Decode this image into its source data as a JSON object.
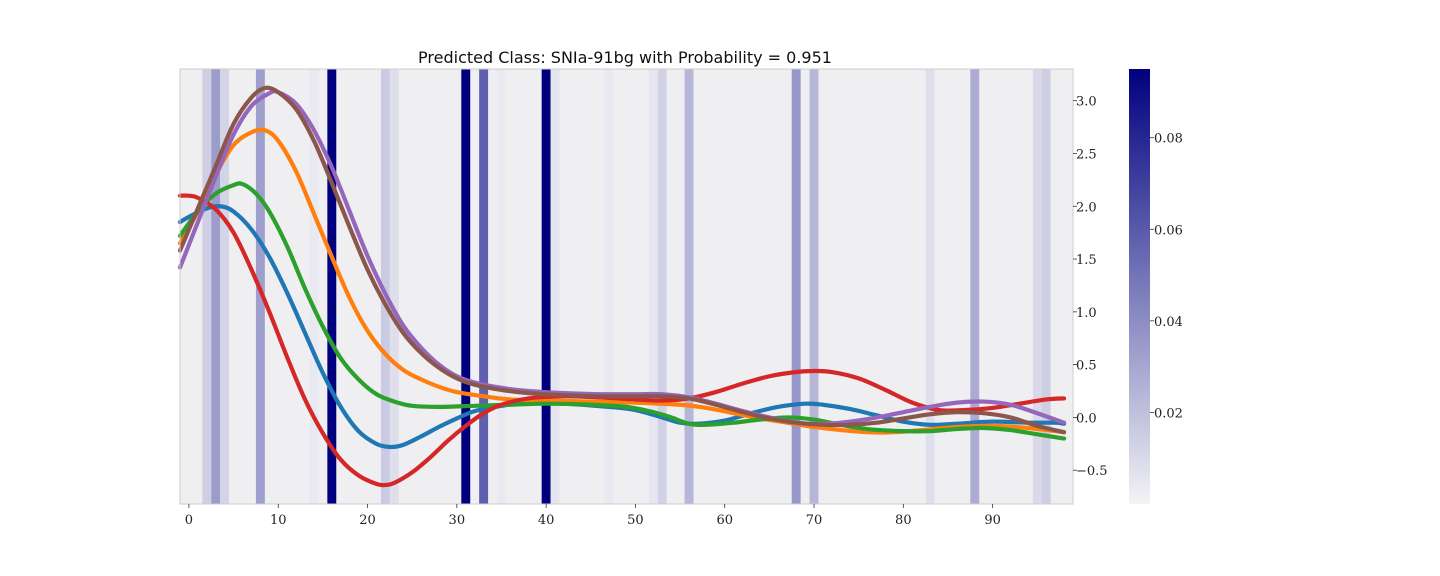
{
  "chart_data": {
    "type": "line",
    "title": "Predicted Class: SNIa-91bg with Probability = 0.951",
    "xlabel": "",
    "ylabel": "",
    "xlim": [
      -1,
      99
    ],
    "ylim": [
      -0.82,
      3.3
    ],
    "x_ticks": [
      0,
      10,
      20,
      30,
      40,
      50,
      60,
      70,
      80,
      90
    ],
    "y_ticks": [
      {
        "value": 3.0,
        "label": "3.0"
      },
      {
        "value": 2.5,
        "label": "2.5"
      },
      {
        "value": 2.0,
        "label": "2.0"
      },
      {
        "value": 1.5,
        "label": "1.5"
      },
      {
        "value": 1.0,
        "label": "1.0"
      },
      {
        "value": 0.5,
        "label": "0.5"
      },
      {
        "value": 0.0,
        "label": "0.0"
      },
      {
        "value": -0.5,
        "label": "−0.5"
      }
    ],
    "y_axis_side": "right",
    "grid": false,
    "legend": "none",
    "background_color": "#efeff2",
    "series": [
      {
        "color": "#1f77b4",
        "points": [
          [
            -1,
            1.85
          ],
          [
            0,
            1.9
          ],
          [
            2,
            1.98
          ],
          [
            3.5,
            2.0
          ],
          [
            5,
            1.95
          ],
          [
            7,
            1.78
          ],
          [
            9,
            1.52
          ],
          [
            11,
            1.18
          ],
          [
            13,
            0.8
          ],
          [
            15,
            0.42
          ],
          [
            17,
            0.1
          ],
          [
            19,
            -0.13
          ],
          [
            21,
            -0.25
          ],
          [
            22.5,
            -0.28
          ],
          [
            24,
            -0.26
          ],
          [
            26,
            -0.18
          ],
          [
            28,
            -0.09
          ],
          [
            30,
            -0.01
          ],
          [
            32,
            0.06
          ],
          [
            35,
            0.11
          ],
          [
            38,
            0.14
          ],
          [
            42,
            0.13
          ],
          [
            47,
            0.1
          ],
          [
            50,
            0.07
          ],
          [
            53,
            0.0
          ],
          [
            55,
            -0.05
          ],
          [
            57,
            -0.06
          ],
          [
            60,
            -0.03
          ],
          [
            63,
            0.04
          ],
          [
            66,
            0.1
          ],
          [
            69,
            0.13
          ],
          [
            71,
            0.12
          ],
          [
            74,
            0.08
          ],
          [
            77,
            0.02
          ],
          [
            80,
            -0.04
          ],
          [
            83,
            -0.07
          ],
          [
            86,
            -0.06
          ],
          [
            90,
            -0.04
          ],
          [
            94,
            -0.05
          ],
          [
            97,
            -0.05
          ],
          [
            98,
            -0.06
          ]
        ]
      },
      {
        "color": "#ff7f0e",
        "points": [
          [
            -1,
            1.65
          ],
          [
            1,
            1.95
          ],
          [
            3,
            2.3
          ],
          [
            5,
            2.58
          ],
          [
            7,
            2.7
          ],
          [
            8.5,
            2.72
          ],
          [
            10,
            2.62
          ],
          [
            12,
            2.33
          ],
          [
            14,
            1.93
          ],
          [
            16,
            1.52
          ],
          [
            18,
            1.13
          ],
          [
            20,
            0.82
          ],
          [
            22,
            0.6
          ],
          [
            24,
            0.45
          ],
          [
            26,
            0.36
          ],
          [
            28,
            0.29
          ],
          [
            30,
            0.24
          ],
          [
            33,
            0.2
          ],
          [
            36,
            0.17
          ],
          [
            40,
            0.16
          ],
          [
            45,
            0.15
          ],
          [
            50,
            0.14
          ],
          [
            55,
            0.12
          ],
          [
            58,
            0.09
          ],
          [
            61,
            0.04
          ],
          [
            64,
            -0.01
          ],
          [
            67,
            -0.05
          ],
          [
            70,
            -0.09
          ],
          [
            73,
            -0.12
          ],
          [
            76,
            -0.14
          ],
          [
            79,
            -0.14
          ],
          [
            82,
            -0.12
          ],
          [
            86,
            -0.09
          ],
          [
            90,
            -0.08
          ],
          [
            94,
            -0.1
          ],
          [
            98,
            -0.14
          ]
        ]
      },
      {
        "color": "#2ca02c",
        "points": [
          [
            -1,
            1.72
          ],
          [
            1,
            1.95
          ],
          [
            3,
            2.12
          ],
          [
            5,
            2.2
          ],
          [
            6,
            2.21
          ],
          [
            7.5,
            2.12
          ],
          [
            9,
            1.95
          ],
          [
            11,
            1.62
          ],
          [
            13,
            1.22
          ],
          [
            15,
            0.86
          ],
          [
            17,
            0.56
          ],
          [
            19,
            0.36
          ],
          [
            21,
            0.22
          ],
          [
            23,
            0.15
          ],
          [
            25,
            0.11
          ],
          [
            28,
            0.1
          ],
          [
            32,
            0.11
          ],
          [
            36,
            0.12
          ],
          [
            40,
            0.13
          ],
          [
            45,
            0.12
          ],
          [
            49,
            0.1
          ],
          [
            52,
            0.05
          ],
          [
            54,
            0.0
          ],
          [
            56,
            -0.06
          ],
          [
            58,
            -0.07
          ],
          [
            61,
            -0.05
          ],
          [
            64,
            -0.02
          ],
          [
            67,
            0.0
          ],
          [
            70,
            -0.02
          ],
          [
            73,
            -0.07
          ],
          [
            76,
            -0.11
          ],
          [
            80,
            -0.13
          ],
          [
            83,
            -0.13
          ],
          [
            86,
            -0.11
          ],
          [
            89,
            -0.1
          ],
          [
            92,
            -0.12
          ],
          [
            95,
            -0.16
          ],
          [
            98,
            -0.2
          ]
        ]
      },
      {
        "color": "#d62728",
        "points": [
          [
            -1,
            2.1
          ],
          [
            0,
            2.1
          ],
          [
            1,
            2.08
          ],
          [
            3,
            1.97
          ],
          [
            5,
            1.75
          ],
          [
            7,
            1.4
          ],
          [
            9,
            1.0
          ],
          [
            11,
            0.57
          ],
          [
            13,
            0.17
          ],
          [
            15,
            -0.15
          ],
          [
            17,
            -0.4
          ],
          [
            19,
            -0.55
          ],
          [
            21,
            -0.63
          ],
          [
            22,
            -0.64
          ],
          [
            23,
            -0.62
          ],
          [
            25,
            -0.52
          ],
          [
            27,
            -0.38
          ],
          [
            29,
            -0.22
          ],
          [
            31,
            -0.08
          ],
          [
            33,
            0.04
          ],
          [
            35,
            0.12
          ],
          [
            38,
            0.18
          ],
          [
            42,
            0.2
          ],
          [
            46,
            0.19
          ],
          [
            50,
            0.17
          ],
          [
            53,
            0.16
          ],
          [
            56,
            0.18
          ],
          [
            59,
            0.24
          ],
          [
            62,
            0.32
          ],
          [
            65,
            0.39
          ],
          [
            68,
            0.43
          ],
          [
            70,
            0.44
          ],
          [
            72,
            0.43
          ],
          [
            75,
            0.37
          ],
          [
            78,
            0.26
          ],
          [
            81,
            0.14
          ],
          [
            84,
            0.07
          ],
          [
            87,
            0.07
          ],
          [
            90,
            0.09
          ],
          [
            93,
            0.13
          ],
          [
            96,
            0.17
          ],
          [
            98,
            0.18
          ]
        ]
      },
      {
        "color": "#9467bd",
        "points": [
          [
            -1,
            1.42
          ],
          [
            1,
            1.85
          ],
          [
            3,
            2.28
          ],
          [
            5,
            2.68
          ],
          [
            7,
            2.95
          ],
          [
            9,
            3.07
          ],
          [
            10,
            3.08
          ],
          [
            12,
            2.97
          ],
          [
            14,
            2.72
          ],
          [
            16,
            2.37
          ],
          [
            18,
            1.95
          ],
          [
            20,
            1.53
          ],
          [
            22,
            1.17
          ],
          [
            24,
            0.87
          ],
          [
            26,
            0.66
          ],
          [
            28,
            0.5
          ],
          [
            30,
            0.39
          ],
          [
            32,
            0.33
          ],
          [
            35,
            0.28
          ],
          [
            38,
            0.25
          ],
          [
            42,
            0.23
          ],
          [
            46,
            0.22
          ],
          [
            50,
            0.22
          ],
          [
            53,
            0.22
          ],
          [
            56,
            0.19
          ],
          [
            59,
            0.13
          ],
          [
            62,
            0.06
          ],
          [
            65,
            0.0
          ],
          [
            68,
            -0.05
          ],
          [
            71,
            -0.06
          ],
          [
            74,
            -0.04
          ],
          [
            77,
            0.0
          ],
          [
            80,
            0.05
          ],
          [
            83,
            0.1
          ],
          [
            86,
            0.14
          ],
          [
            89,
            0.15
          ],
          [
            92,
            0.12
          ],
          [
            95,
            0.04
          ],
          [
            98,
            -0.05
          ]
        ]
      },
      {
        "color": "#8c564b",
        "points": [
          [
            -1,
            1.58
          ],
          [
            1,
            1.98
          ],
          [
            3,
            2.38
          ],
          [
            5,
            2.78
          ],
          [
            7,
            3.03
          ],
          [
            8.5,
            3.12
          ],
          [
            10,
            3.08
          ],
          [
            12,
            2.92
          ],
          [
            14,
            2.62
          ],
          [
            16,
            2.22
          ],
          [
            18,
            1.8
          ],
          [
            20,
            1.4
          ],
          [
            22,
            1.07
          ],
          [
            24,
            0.8
          ],
          [
            26,
            0.61
          ],
          [
            28,
            0.47
          ],
          [
            30,
            0.37
          ],
          [
            32,
            0.31
          ],
          [
            35,
            0.26
          ],
          [
            38,
            0.23
          ],
          [
            42,
            0.21
          ],
          [
            46,
            0.2
          ],
          [
            50,
            0.2
          ],
          [
            53,
            0.2
          ],
          [
            56,
            0.18
          ],
          [
            59,
            0.12
          ],
          [
            62,
            0.05
          ],
          [
            65,
            -0.01
          ],
          [
            68,
            -0.05
          ],
          [
            71,
            -0.07
          ],
          [
            74,
            -0.07
          ],
          [
            77,
            -0.05
          ],
          [
            80,
            -0.01
          ],
          [
            83,
            0.03
          ],
          [
            86,
            0.05
          ],
          [
            89,
            0.04
          ],
          [
            92,
            0.0
          ],
          [
            95,
            -0.08
          ],
          [
            98,
            -0.14
          ]
        ]
      }
    ],
    "attention_bands": {
      "colorscale": [
        "#f3f3f6",
        "#00007f"
      ],
      "range": [
        0.0,
        0.095
      ],
      "bands": [
        {
          "x": 2,
          "value": 0.014
        },
        {
          "x": 3,
          "value": 0.034
        },
        {
          "x": 4,
          "value": 0.012
        },
        {
          "x": 8,
          "value": 0.033
        },
        {
          "x": 14,
          "value": 0.004
        },
        {
          "x": 16,
          "value": 0.095
        },
        {
          "x": 22,
          "value": 0.016
        },
        {
          "x": 23,
          "value": 0.008
        },
        {
          "x": 31,
          "value": 0.095
        },
        {
          "x": 33,
          "value": 0.058
        },
        {
          "x": 35,
          "value": 0.004
        },
        {
          "x": 40,
          "value": 0.095
        },
        {
          "x": 41,
          "value": 0.006
        },
        {
          "x": 47,
          "value": 0.004
        },
        {
          "x": 52,
          "value": 0.005
        },
        {
          "x": 53,
          "value": 0.013
        },
        {
          "x": 56,
          "value": 0.024
        },
        {
          "x": 68,
          "value": 0.036
        },
        {
          "x": 70,
          "value": 0.024
        },
        {
          "x": 83,
          "value": 0.008
        },
        {
          "x": 88,
          "value": 0.028
        },
        {
          "x": 95,
          "value": 0.01
        },
        {
          "x": 96,
          "value": 0.014
        }
      ]
    },
    "colorbar": {
      "ticks": [
        {
          "value": 0.08,
          "label": "0.08"
        },
        {
          "value": 0.06,
          "label": "0.06"
        },
        {
          "value": 0.04,
          "label": "0.04"
        },
        {
          "value": 0.02,
          "label": "0.02"
        }
      ],
      "range": [
        0.0,
        0.095
      ]
    }
  }
}
